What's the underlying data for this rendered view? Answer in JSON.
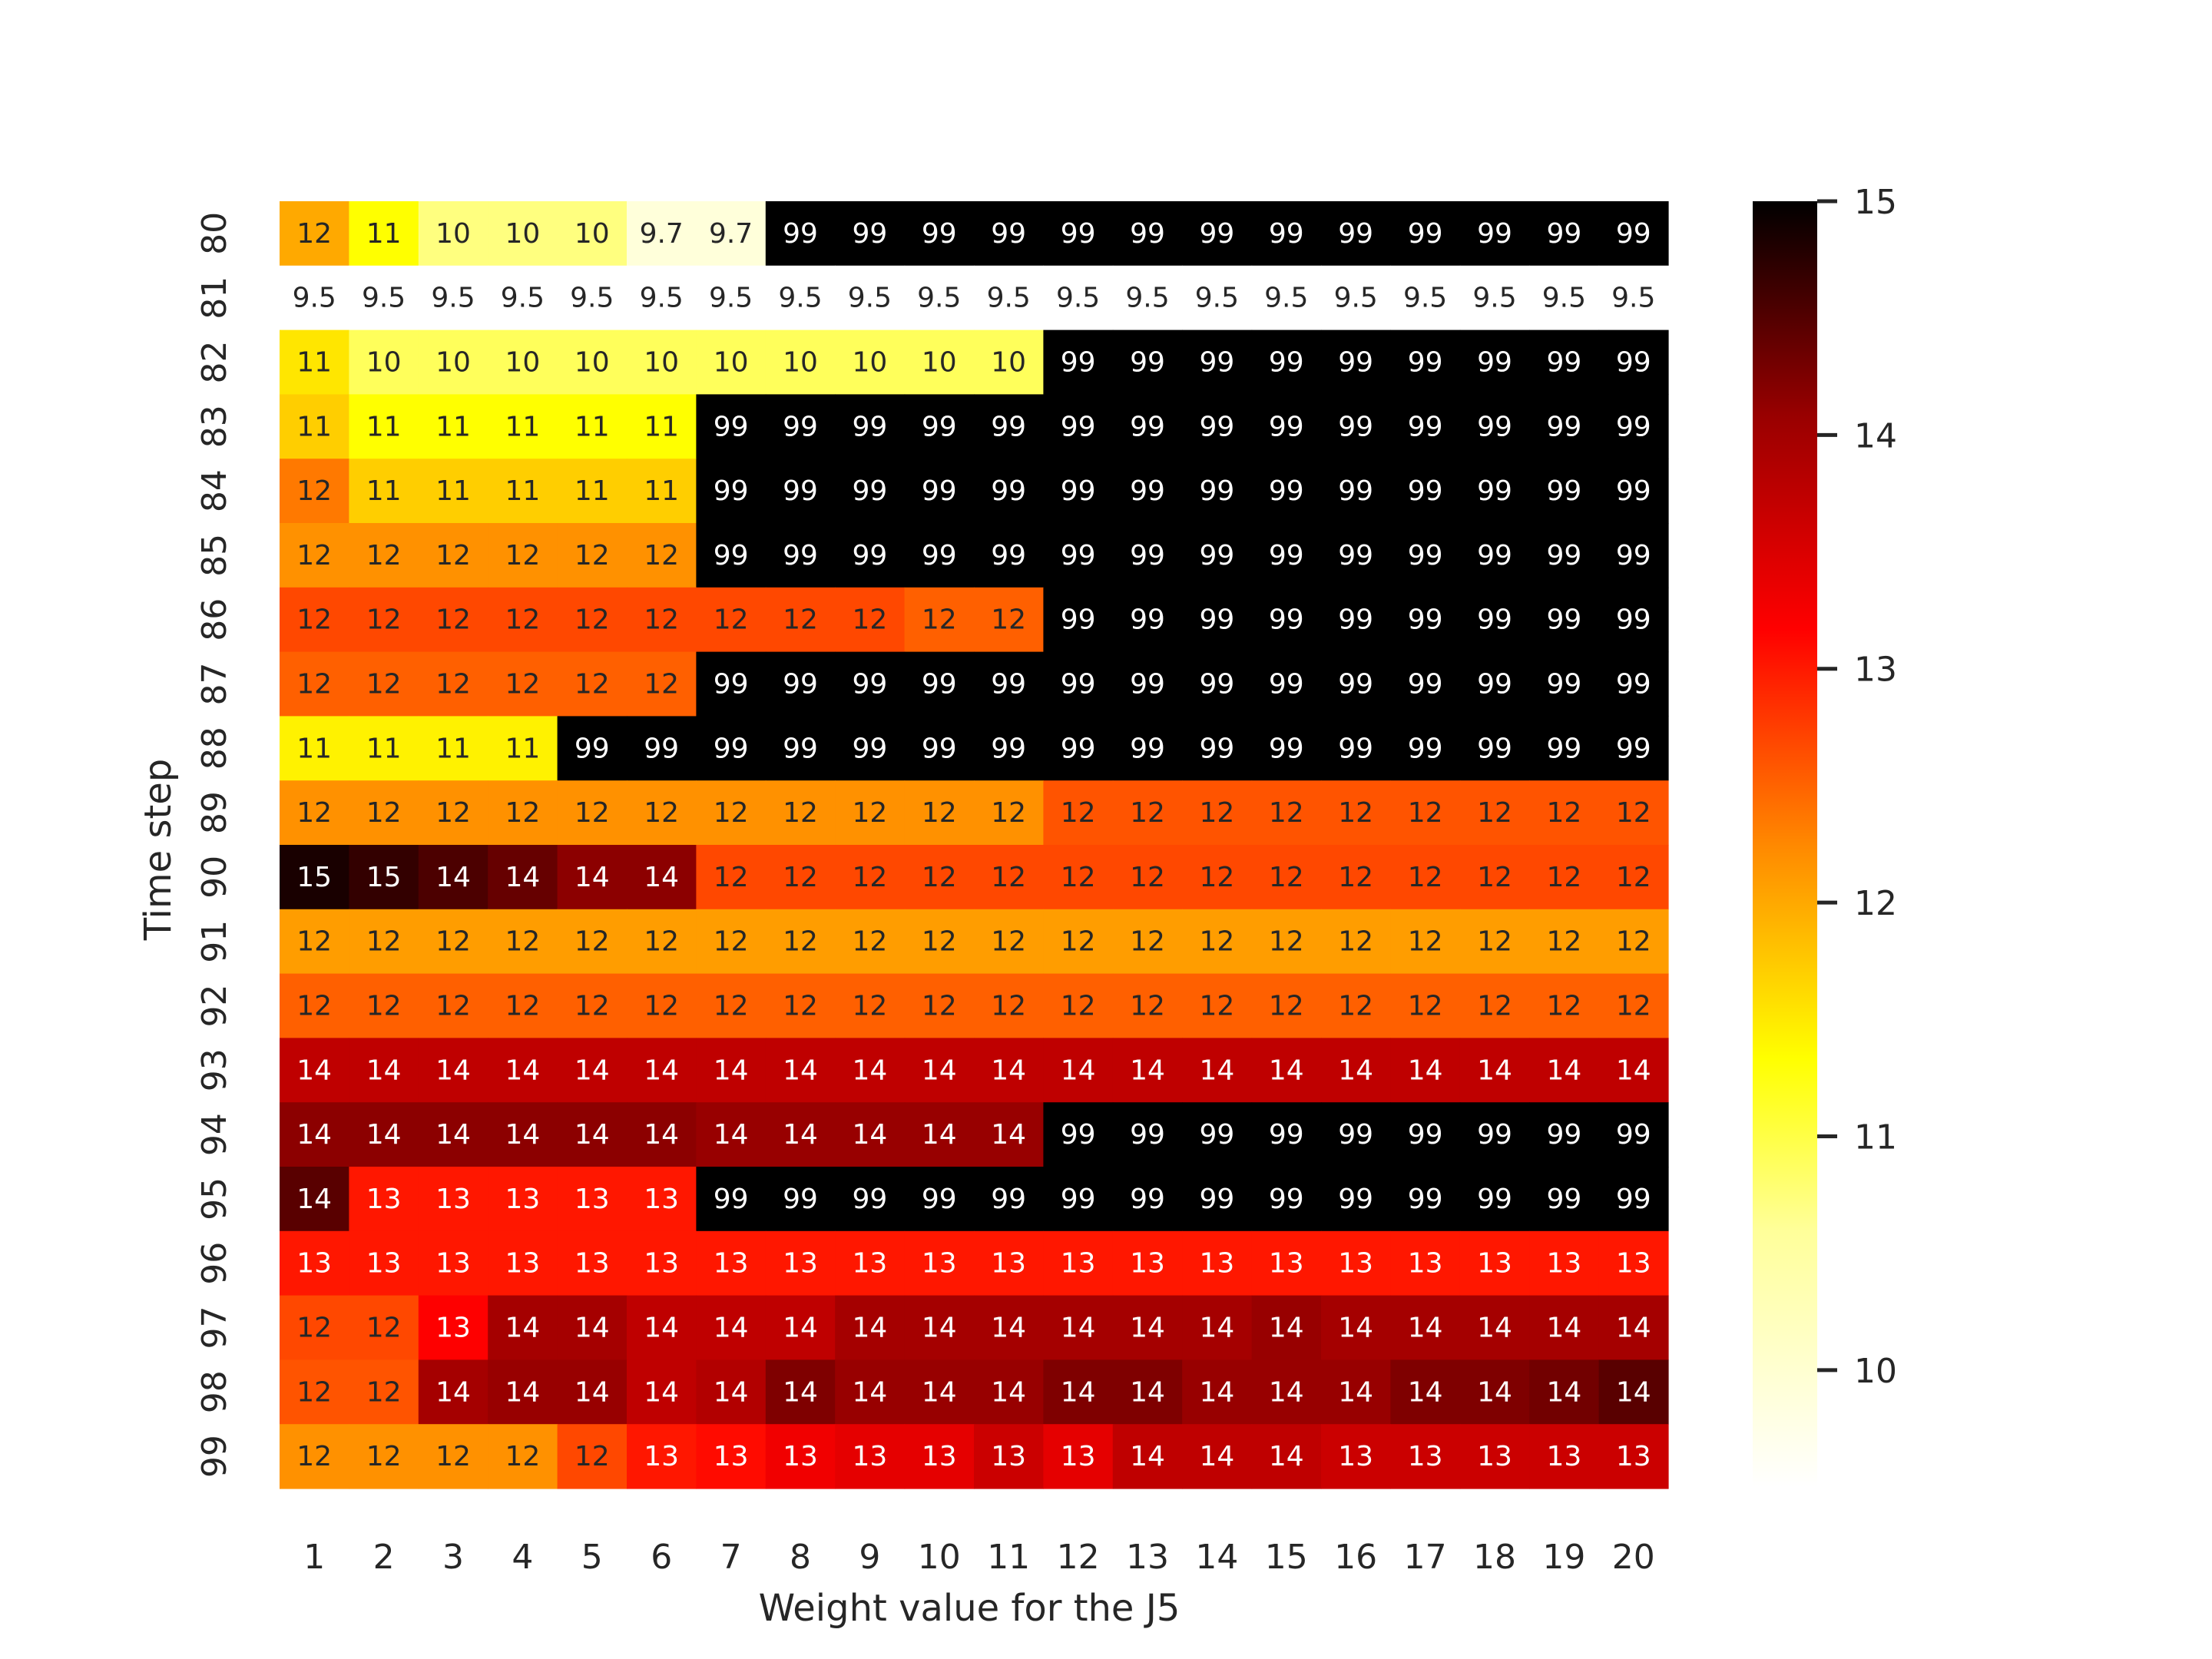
{
  "chart_data": {
    "type": "heatmap",
    "xlabel": "Weight value for the J5",
    "ylabel": "Time step",
    "x": [
      "1",
      "2",
      "3",
      "4",
      "5",
      "6",
      "7",
      "8",
      "9",
      "10",
      "11",
      "12",
      "13",
      "14",
      "15",
      "16",
      "17",
      "18",
      "19",
      "20"
    ],
    "y": [
      "80",
      "81",
      "82",
      "83",
      "84",
      "85",
      "86",
      "87",
      "88",
      "89",
      "90",
      "91",
      "92",
      "93",
      "94",
      "95",
      "96",
      "97",
      "98",
      "99"
    ],
    "colorscale": "hot_r",
    "vmin": 9.5,
    "vmax": 15,
    "colorbar_ticks": [
      "10",
      "11",
      "12",
      "13",
      "14",
      "15"
    ],
    "grid": false,
    "values": [
      [
        11.6,
        10.9,
        10.2,
        10.2,
        10.2,
        9.7,
        9.7,
        99,
        99,
        99,
        99,
        99,
        99,
        99,
        99,
        99,
        99,
        99,
        99,
        99
      ],
      [
        9.5,
        9.5,
        9.5,
        9.5,
        9.5,
        9.5,
        9.5,
        9.5,
        9.5,
        9.5,
        9.5,
        9.5,
        9.5,
        9.5,
        9.5,
        9.5,
        9.5,
        9.5,
        9.5,
        9.5
      ],
      [
        11.1,
        10.4,
        10.4,
        10.4,
        10.4,
        10.4,
        10.4,
        10.4,
        10.4,
        10.4,
        10.4,
        99,
        99,
        99,
        99,
        99,
        99,
        99,
        99,
        99
      ],
      [
        11.3,
        10.9,
        10.9,
        10.9,
        10.9,
        10.9,
        99,
        99,
        99,
        99,
        99,
        99,
        99,
        99,
        99,
        99,
        99,
        99,
        99,
        99
      ],
      [
        12.0,
        11.3,
        11.3,
        11.3,
        11.3,
        11.3,
        99,
        99,
        99,
        99,
        99,
        99,
        99,
        99,
        99,
        99,
        99,
        99,
        99,
        99
      ],
      [
        11.8,
        11.8,
        11.8,
        11.8,
        11.8,
        11.8,
        99,
        99,
        99,
        99,
        99,
        99,
        99,
        99,
        99,
        99,
        99,
        99,
        99,
        99
      ],
      [
        12.4,
        12.4,
        12.4,
        12.4,
        12.4,
        12.4,
        12.4,
        12.4,
        12.4,
        12.2,
        12.2,
        99,
        99,
        99,
        99,
        99,
        99,
        99,
        99,
        99
      ],
      [
        12.2,
        12.2,
        12.2,
        12.2,
        12.2,
        12.2,
        99,
        99,
        99,
        99,
        99,
        99,
        99,
        99,
        99,
        99,
        99,
        99,
        99,
        99
      ],
      [
        11.0,
        11.0,
        11.0,
        11.0,
        99,
        99,
        99,
        99,
        99,
        99,
        99,
        99,
        99,
        99,
        99,
        99,
        99,
        99,
        99,
        99
      ],
      [
        11.8,
        11.8,
        11.8,
        11.8,
        11.8,
        11.8,
        11.8,
        11.8,
        11.8,
        11.8,
        11.8,
        12.3,
        12.3,
        12.3,
        12.3,
        12.3,
        12.3,
        12.3,
        12.3,
        12.3
      ],
      [
        14.8,
        14.6,
        14.4,
        14.2,
        13.9,
        13.9,
        12.4,
        12.4,
        12.4,
        12.4,
        12.4,
        12.4,
        12.4,
        12.4,
        12.4,
        12.4,
        12.4,
        12.4,
        12.4,
        12.4
      ],
      [
        11.7,
        11.7,
        11.7,
        11.7,
        11.7,
        11.7,
        11.7,
        11.7,
        11.7,
        11.7,
        11.7,
        11.7,
        11.7,
        11.7,
        11.7,
        11.7,
        11.7,
        11.7,
        11.7,
        11.7
      ],
      [
        12.2,
        12.2,
        12.2,
        12.2,
        12.2,
        12.2,
        12.2,
        12.2,
        12.2,
        12.2,
        12.2,
        12.2,
        12.2,
        12.2,
        12.2,
        12.2,
        12.2,
        12.2,
        12.2,
        12.2
      ],
      [
        13.5,
        13.5,
        13.5,
        13.5,
        13.5,
        13.5,
        13.5,
        13.5,
        13.5,
        13.5,
        13.5,
        13.5,
        13.5,
        13.5,
        13.5,
        13.5,
        13.5,
        13.5,
        13.5,
        13.5
      ],
      [
        13.9,
        13.9,
        13.9,
        13.9,
        13.9,
        13.9,
        13.8,
        13.8,
        13.8,
        13.8,
        13.8,
        99,
        99,
        99,
        99,
        99,
        99,
        99,
        99,
        99
      ],
      [
        14.3,
        12.8,
        12.8,
        12.8,
        12.8,
        12.8,
        99,
        99,
        99,
        99,
        99,
        99,
        99,
        99,
        99,
        99,
        99,
        99,
        99,
        99
      ],
      [
        12.8,
        12.8,
        12.8,
        12.8,
        12.8,
        12.8,
        12.8,
        12.8,
        12.8,
        12.8,
        12.8,
        12.8,
        12.8,
        12.8,
        12.8,
        12.8,
        12.8,
        12.8,
        12.8,
        12.8
      ],
      [
        12.4,
        12.4,
        13.0,
        13.7,
        13.7,
        13.5,
        13.5,
        13.5,
        13.7,
        13.7,
        13.7,
        13.7,
        13.7,
        13.7,
        13.8,
        13.7,
        13.7,
        13.7,
        13.7,
        13.7
      ],
      [
        12.3,
        12.3,
        13.7,
        13.8,
        13.8,
        13.5,
        13.6,
        14.0,
        13.8,
        13.8,
        13.8,
        14.0,
        14.0,
        13.8,
        13.8,
        13.8,
        14.0,
        14.0,
        14.1,
        14.3
      ],
      [
        11.8,
        11.8,
        11.8,
        11.8,
        12.4,
        12.8,
        12.9,
        13.1,
        13.2,
        13.2,
        13.4,
        13.2,
        13.5,
        13.5,
        13.5,
        13.4,
        13.4,
        13.4,
        13.4,
        13.4
      ]
    ]
  }
}
